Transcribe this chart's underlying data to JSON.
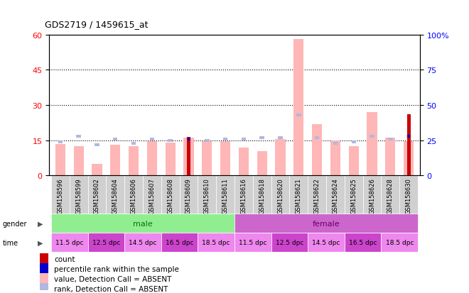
{
  "title": "GDS2719 / 1459615_at",
  "samples": [
    "GSM158596",
    "GSM158599",
    "GSM158602",
    "GSM158604",
    "GSM158606",
    "GSM158607",
    "GSM158608",
    "GSM158609",
    "GSM158610",
    "GSM158611",
    "GSM158616",
    "GSM158618",
    "GSM158620",
    "GSM158621",
    "GSM158622",
    "GSM158624",
    "GSM158625",
    "GSM158626",
    "GSM158628",
    "GSM158630"
  ],
  "value_absent": [
    13.5,
    12.5,
    5.0,
    13.0,
    12.5,
    14.5,
    14.0,
    16.0,
    14.5,
    14.5,
    12.0,
    10.5,
    15.5,
    58.0,
    22.0,
    15.0,
    12.5,
    27.0,
    16.0,
    14.5
  ],
  "rank_absent_pct": [
    24.0,
    28.0,
    22.0,
    26.0,
    23.0,
    26.0,
    25.0,
    26.0,
    25.0,
    26.0,
    26.0,
    27.0,
    27.0,
    43.0,
    27.0,
    23.0,
    24.0,
    28.0,
    26.0,
    28.0
  ],
  "count_vals": [
    0,
    0,
    0,
    0,
    0,
    0,
    0,
    16.5,
    0,
    0,
    0,
    0,
    0,
    0,
    0,
    0,
    0,
    0,
    0,
    26.0
  ],
  "pct_rank_vals": [
    0,
    0,
    0,
    0,
    0,
    0,
    0,
    26.0,
    0,
    0,
    0,
    0,
    0,
    0,
    0,
    0,
    0,
    0,
    0,
    28.0
  ],
  "count_color": "#cc0000",
  "pct_color": "#0000cc",
  "value_absent_color": "#ffb6b6",
  "rank_absent_color": "#b0b8e0",
  "ylim_left": [
    0,
    60
  ],
  "ylim_right": [
    0,
    100
  ],
  "yticks_left": [
    0,
    15,
    30,
    45,
    60
  ],
  "yticks_right": [
    0,
    25,
    50,
    75,
    100
  ],
  "hline_y": [
    15,
    30,
    45
  ],
  "gender_groups": [
    {
      "label": "male",
      "start": 0,
      "end": 9,
      "color": "#90ee90",
      "text_color": "#007700"
    },
    {
      "label": "female",
      "start": 10,
      "end": 19,
      "color": "#cc66cc",
      "text_color": "#660066"
    }
  ],
  "time_groups": [
    {
      "label": "11.5 dpc",
      "start": 0,
      "end": 1,
      "color": "#ee88ee"
    },
    {
      "label": "12.5 dpc",
      "start": 2,
      "end": 3,
      "color": "#cc44cc"
    },
    {
      "label": "14.5 dpc",
      "start": 4,
      "end": 5,
      "color": "#ee88ee"
    },
    {
      "label": "16.5 dpc",
      "start": 6,
      "end": 7,
      "color": "#cc44cc"
    },
    {
      "label": "18.5 dpc",
      "start": 8,
      "end": 9,
      "color": "#ee88ee"
    },
    {
      "label": "11.5 dpc",
      "start": 10,
      "end": 11,
      "color": "#ee88ee"
    },
    {
      "label": "12.5 dpc",
      "start": 12,
      "end": 13,
      "color": "#cc44cc"
    },
    {
      "label": "14.5 dpc",
      "start": 14,
      "end": 15,
      "color": "#ee88ee"
    },
    {
      "label": "16.5 dpc",
      "start": 16,
      "end": 17,
      "color": "#cc44cc"
    },
    {
      "label": "18.5 dpc",
      "start": 18,
      "end": 19,
      "color": "#ee88ee"
    }
  ],
  "legend_items": [
    {
      "label": "count",
      "color": "#cc0000"
    },
    {
      "label": "percentile rank within the sample",
      "color": "#0000cc"
    },
    {
      "label": "value, Detection Call = ABSENT",
      "color": "#ffb6b6"
    },
    {
      "label": "rank, Detection Call = ABSENT",
      "color": "#b0b8e0"
    }
  ]
}
